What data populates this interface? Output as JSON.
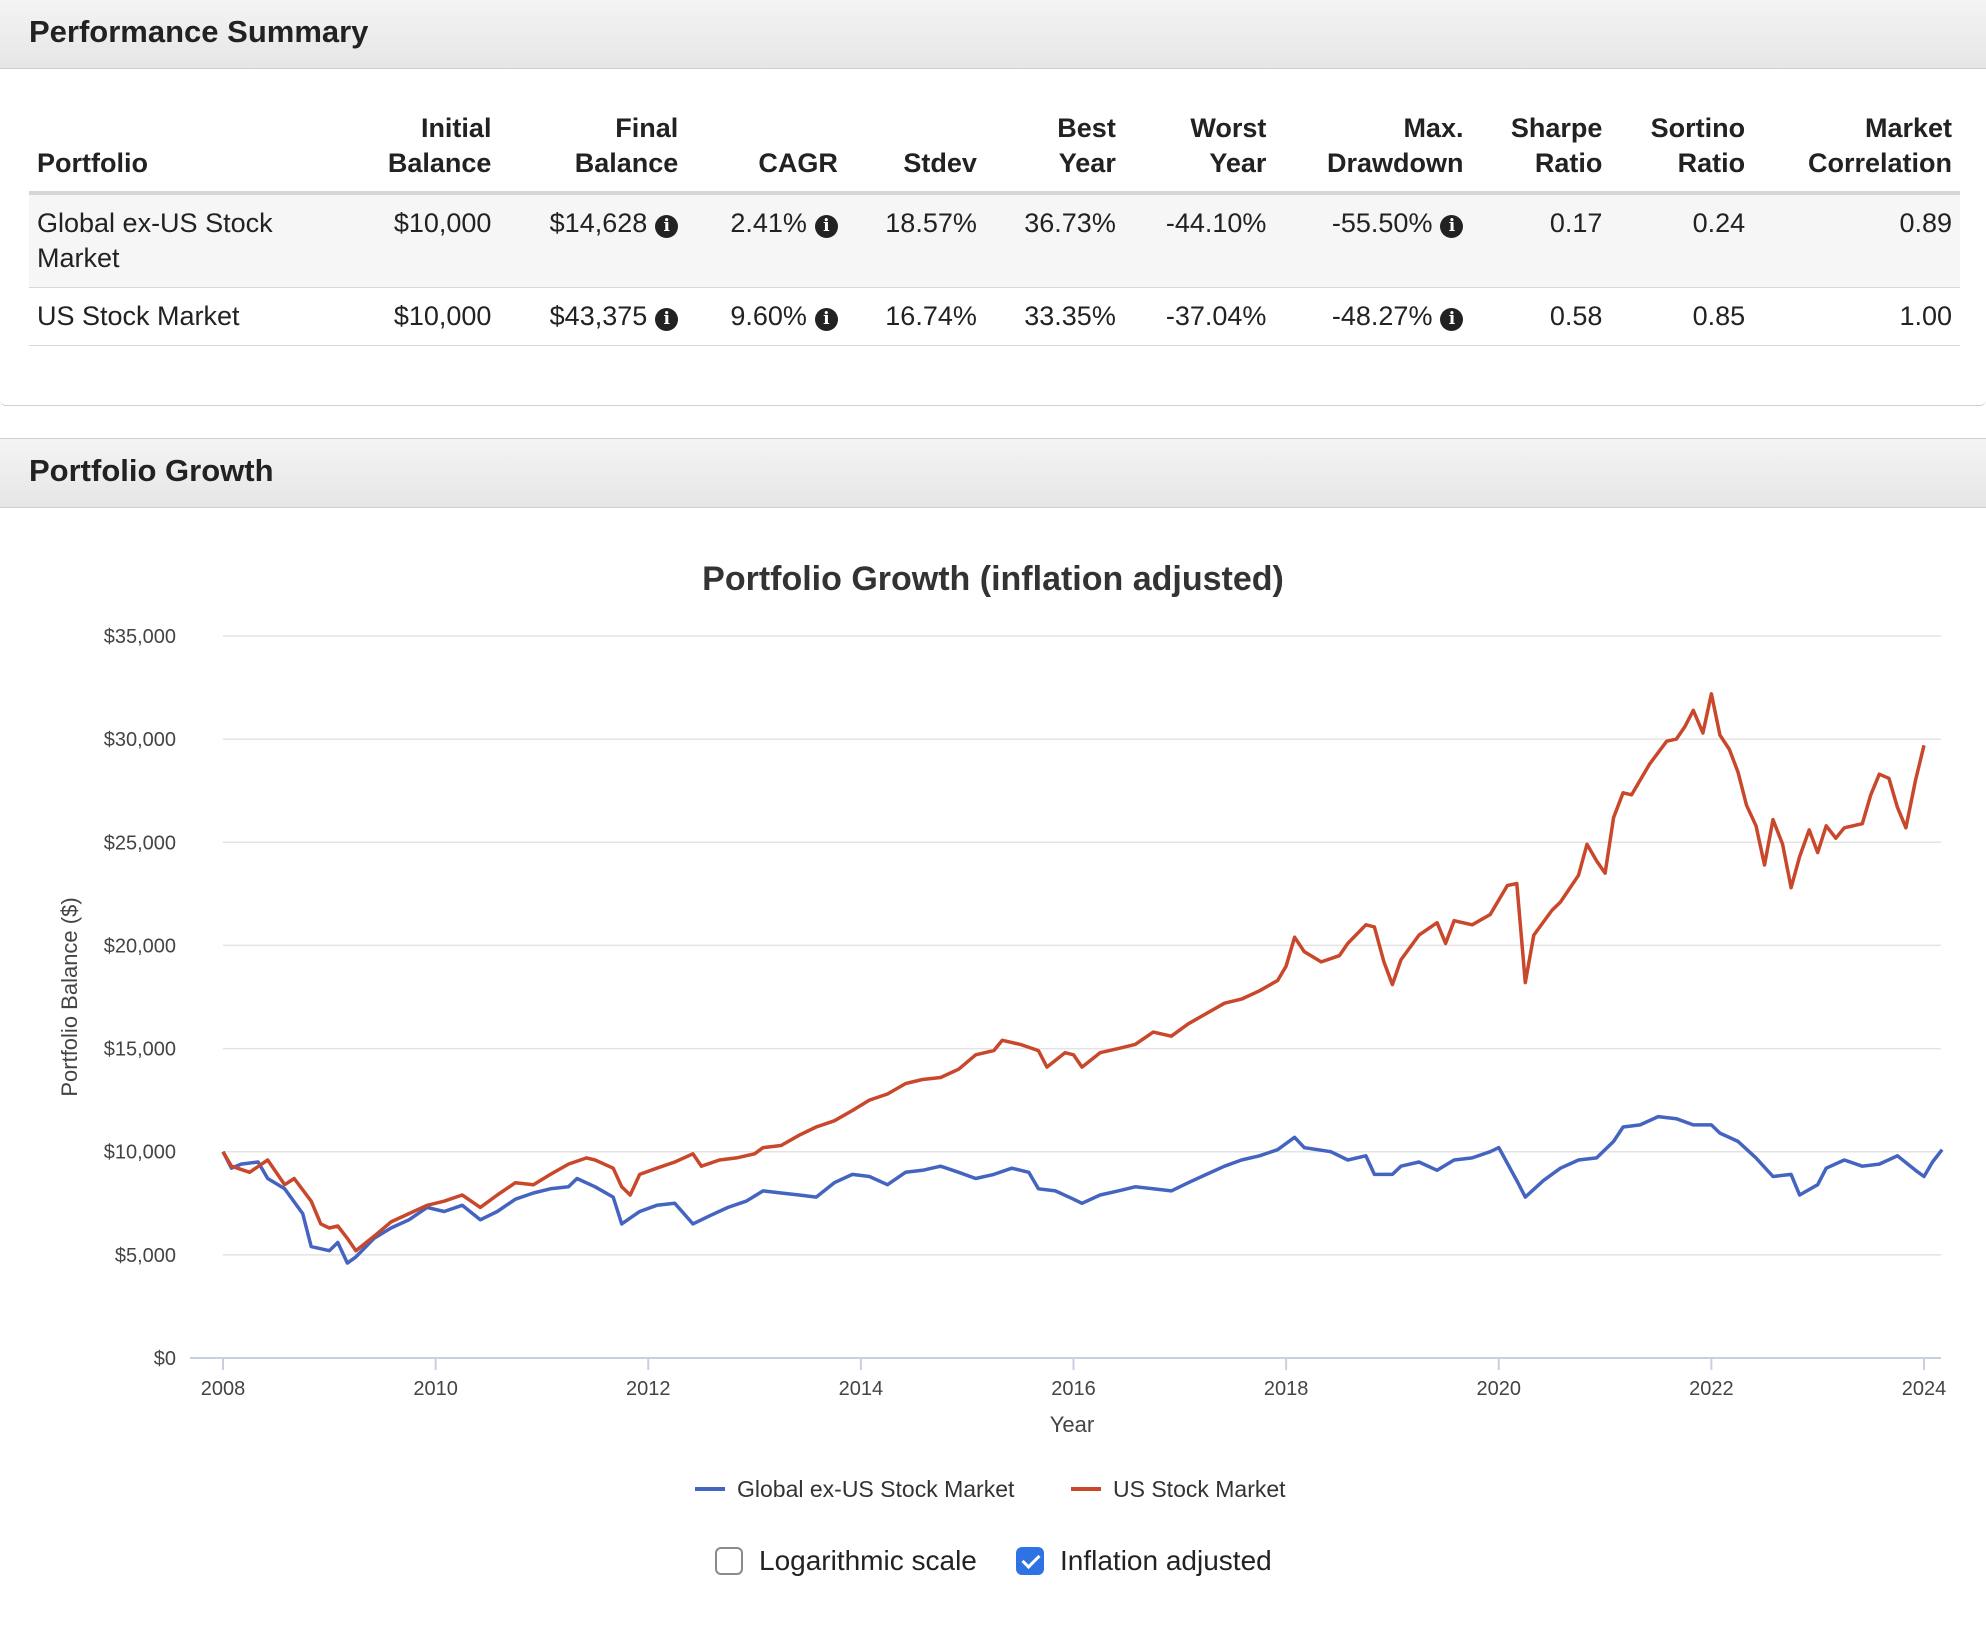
{
  "performance_summary": {
    "title": "Performance Summary",
    "columns": [
      {
        "line1": "",
        "line2": "Portfolio",
        "align": "left"
      },
      {
        "line1": "Initial",
        "line2": "Balance"
      },
      {
        "line1": "Final",
        "line2": "Balance"
      },
      {
        "line1": "",
        "line2": "CAGR"
      },
      {
        "line1": "",
        "line2": "Stdev"
      },
      {
        "line1": "Best",
        "line2": "Year"
      },
      {
        "line1": "Worst",
        "line2": "Year"
      },
      {
        "line1": "Max.",
        "line2": "Drawdown"
      },
      {
        "line1": "Sharpe",
        "line2": "Ratio"
      },
      {
        "line1": "Sortino",
        "line2": "Ratio"
      },
      {
        "line1": "Market",
        "line2": "Correlation"
      }
    ],
    "rows": [
      {
        "portfolio": "Global ex-US Stock Market",
        "initial_balance": "$10,000",
        "final_balance": "$14,628",
        "cagr": "2.41%",
        "stdev": "18.57%",
        "best_year": "36.73%",
        "worst_year": "-44.10%",
        "max_drawdown": "-55.50%",
        "sharpe_ratio": "0.17",
        "sortino_ratio": "0.24",
        "market_correlation": "0.89"
      },
      {
        "portfolio": "US Stock Market",
        "initial_balance": "$10,000",
        "final_balance": "$43,375",
        "cagr": "9.60%",
        "stdev": "16.74%",
        "best_year": "33.35%",
        "worst_year": "-37.04%",
        "max_drawdown": "-48.27%",
        "sharpe_ratio": "0.58",
        "sortino_ratio": "0.85",
        "market_correlation": "1.00"
      }
    ],
    "info_icon": "info-circle-icon"
  },
  "portfolio_growth": {
    "title": "Portfolio Growth",
    "controls": {
      "log_scale": {
        "label": "Logarithmic scale",
        "checked": false
      },
      "inflation_adjusted": {
        "label": "Inflation adjusted",
        "checked": true
      }
    }
  },
  "chart_data": {
    "type": "line",
    "title": "Portfolio Growth (inflation adjusted)",
    "xlabel": "Year",
    "ylabel": "Portfolio Balance ($)",
    "xlim": [
      2008,
      2024
    ],
    "ylim": [
      0,
      35000
    ],
    "x_ticks": [
      2008,
      2010,
      2012,
      2014,
      2016,
      2018,
      2020,
      2022,
      2024
    ],
    "y_ticks": [
      0,
      5000,
      10000,
      15000,
      20000,
      25000,
      30000,
      35000
    ],
    "y_tick_labels": [
      "$0",
      "$5,000",
      "$10,000",
      "$15,000",
      "$20,000",
      "$25,000",
      "$30,000",
      "$35,000"
    ],
    "grid": "horizontal",
    "legend": "bottom-center",
    "series": [
      {
        "name": "Global ex-US Stock Market",
        "color": "#4464c0",
        "points": [
          [
            2008.0,
            10000
          ],
          [
            2008.08,
            9200
          ],
          [
            2008.17,
            9400
          ],
          [
            2008.33,
            9500
          ],
          [
            2008.42,
            8700
          ],
          [
            2008.58,
            8200
          ],
          [
            2008.75,
            7000
          ],
          [
            2008.83,
            5400
          ],
          [
            2009.0,
            5200
          ],
          [
            2009.08,
            5600
          ],
          [
            2009.17,
            4600
          ],
          [
            2009.25,
            4900
          ],
          [
            2009.42,
            5800
          ],
          [
            2009.58,
            6300
          ],
          [
            2009.75,
            6700
          ],
          [
            2009.92,
            7300
          ],
          [
            2010.08,
            7100
          ],
          [
            2010.25,
            7400
          ],
          [
            2010.42,
            6700
          ],
          [
            2010.58,
            7100
          ],
          [
            2010.75,
            7700
          ],
          [
            2010.92,
            8000
          ],
          [
            2011.08,
            8200
          ],
          [
            2011.25,
            8300
          ],
          [
            2011.33,
            8700
          ],
          [
            2011.5,
            8300
          ],
          [
            2011.67,
            7800
          ],
          [
            2011.75,
            6500
          ],
          [
            2011.92,
            7100
          ],
          [
            2012.08,
            7400
          ],
          [
            2012.25,
            7500
          ],
          [
            2012.42,
            6500
          ],
          [
            2012.58,
            6900
          ],
          [
            2012.75,
            7300
          ],
          [
            2012.92,
            7600
          ],
          [
            2013.08,
            8100
          ],
          [
            2013.25,
            8000
          ],
          [
            2013.42,
            7900
          ],
          [
            2013.58,
            7800
          ],
          [
            2013.75,
            8500
          ],
          [
            2013.92,
            8900
          ],
          [
            2014.08,
            8800
          ],
          [
            2014.25,
            8400
          ],
          [
            2014.42,
            9000
          ],
          [
            2014.58,
            9100
          ],
          [
            2014.75,
            9300
          ],
          [
            2014.92,
            9000
          ],
          [
            2015.08,
            8700
          ],
          [
            2015.25,
            8900
          ],
          [
            2015.42,
            9200
          ],
          [
            2015.58,
            9000
          ],
          [
            2015.67,
            8200
          ],
          [
            2015.83,
            8100
          ],
          [
            2016.0,
            7700
          ],
          [
            2016.08,
            7500
          ],
          [
            2016.25,
            7900
          ],
          [
            2016.42,
            8100
          ],
          [
            2016.58,
            8300
          ],
          [
            2016.75,
            8200
          ],
          [
            2016.92,
            8100
          ],
          [
            2017.08,
            8500
          ],
          [
            2017.25,
            8900
          ],
          [
            2017.42,
            9300
          ],
          [
            2017.58,
            9600
          ],
          [
            2017.75,
            9800
          ],
          [
            2017.92,
            10100
          ],
          [
            2018.08,
            10700
          ],
          [
            2018.17,
            10200
          ],
          [
            2018.42,
            10000
          ],
          [
            2018.58,
            9600
          ],
          [
            2018.75,
            9800
          ],
          [
            2018.83,
            8900
          ],
          [
            2019.0,
            8900
          ],
          [
            2019.08,
            9300
          ],
          [
            2019.25,
            9500
          ],
          [
            2019.42,
            9100
          ],
          [
            2019.58,
            9600
          ],
          [
            2019.75,
            9700
          ],
          [
            2019.92,
            10000
          ],
          [
            2020.0,
            10200
          ],
          [
            2020.17,
            8600
          ],
          [
            2020.25,
            7800
          ],
          [
            2020.42,
            8600
          ],
          [
            2020.58,
            9200
          ],
          [
            2020.75,
            9600
          ],
          [
            2020.92,
            9700
          ],
          [
            2021.08,
            10500
          ],
          [
            2021.17,
            11200
          ],
          [
            2021.33,
            11300
          ],
          [
            2021.5,
            11700
          ],
          [
            2021.67,
            11600
          ],
          [
            2021.83,
            11300
          ],
          [
            2022.0,
            11300
          ],
          [
            2022.08,
            10900
          ],
          [
            2022.25,
            10500
          ],
          [
            2022.42,
            9700
          ],
          [
            2022.58,
            8800
          ],
          [
            2022.75,
            8900
          ],
          [
            2022.83,
            7900
          ],
          [
            2023.0,
            8400
          ],
          [
            2023.08,
            9200
          ],
          [
            2023.25,
            9600
          ],
          [
            2023.42,
            9300
          ],
          [
            2023.58,
            9400
          ],
          [
            2023.75,
            9800
          ],
          [
            2023.92,
            9100
          ],
          [
            2024.0,
            8800
          ],
          [
            2024.08,
            9500
          ],
          [
            2024.17,
            10100
          ]
        ]
      },
      {
        "name": "US Stock Market",
        "color": "#c9472a",
        "points": [
          [
            2008.0,
            10000
          ],
          [
            2008.08,
            9300
          ],
          [
            2008.25,
            9000
          ],
          [
            2008.42,
            9600
          ],
          [
            2008.58,
            8400
          ],
          [
            2008.67,
            8700
          ],
          [
            2008.83,
            7600
          ],
          [
            2008.92,
            6500
          ],
          [
            2009.0,
            6300
          ],
          [
            2009.08,
            6400
          ],
          [
            2009.17,
            5800
          ],
          [
            2009.25,
            5200
          ],
          [
            2009.42,
            5900
          ],
          [
            2009.58,
            6600
          ],
          [
            2009.75,
            7000
          ],
          [
            2009.92,
            7400
          ],
          [
            2010.08,
            7600
          ],
          [
            2010.25,
            7900
          ],
          [
            2010.42,
            7300
          ],
          [
            2010.58,
            7900
          ],
          [
            2010.75,
            8500
          ],
          [
            2010.92,
            8400
          ],
          [
            2011.08,
            8900
          ],
          [
            2011.25,
            9400
          ],
          [
            2011.42,
            9700
          ],
          [
            2011.5,
            9600
          ],
          [
            2011.67,
            9200
          ],
          [
            2011.75,
            8300
          ],
          [
            2011.83,
            7900
          ],
          [
            2011.92,
            8900
          ],
          [
            2012.08,
            9200
          ],
          [
            2012.25,
            9500
          ],
          [
            2012.42,
            9900
          ],
          [
            2012.5,
            9300
          ],
          [
            2012.67,
            9600
          ],
          [
            2012.83,
            9700
          ],
          [
            2013.0,
            9900
          ],
          [
            2013.08,
            10200
          ],
          [
            2013.25,
            10300
          ],
          [
            2013.42,
            10800
          ],
          [
            2013.58,
            11200
          ],
          [
            2013.75,
            11500
          ],
          [
            2013.92,
            12000
          ],
          [
            2014.08,
            12500
          ],
          [
            2014.25,
            12800
          ],
          [
            2014.42,
            13300
          ],
          [
            2014.58,
            13500
          ],
          [
            2014.75,
            13600
          ],
          [
            2014.92,
            14000
          ],
          [
            2015.08,
            14700
          ],
          [
            2015.25,
            14900
          ],
          [
            2015.33,
            15400
          ],
          [
            2015.5,
            15200
          ],
          [
            2015.67,
            14900
          ],
          [
            2015.75,
            14100
          ],
          [
            2015.92,
            14800
          ],
          [
            2016.0,
            14700
          ],
          [
            2016.08,
            14100
          ],
          [
            2016.25,
            14800
          ],
          [
            2016.42,
            15000
          ],
          [
            2016.58,
            15200
          ],
          [
            2016.75,
            15800
          ],
          [
            2016.92,
            15600
          ],
          [
            2017.08,
            16200
          ],
          [
            2017.25,
            16700
          ],
          [
            2017.42,
            17200
          ],
          [
            2017.58,
            17400
          ],
          [
            2017.75,
            17800
          ],
          [
            2017.92,
            18300
          ],
          [
            2018.0,
            19000
          ],
          [
            2018.08,
            20400
          ],
          [
            2018.17,
            19700
          ],
          [
            2018.33,
            19200
          ],
          [
            2018.5,
            19500
          ],
          [
            2018.58,
            20100
          ],
          [
            2018.75,
            21000
          ],
          [
            2018.83,
            20900
          ],
          [
            2018.92,
            19200
          ],
          [
            2019.0,
            18100
          ],
          [
            2019.08,
            19300
          ],
          [
            2019.25,
            20500
          ],
          [
            2019.42,
            21100
          ],
          [
            2019.5,
            20100
          ],
          [
            2019.58,
            21200
          ],
          [
            2019.75,
            21000
          ],
          [
            2019.92,
            21500
          ],
          [
            2020.08,
            22900
          ],
          [
            2020.17,
            23000
          ],
          [
            2020.25,
            18200
          ],
          [
            2020.33,
            20500
          ],
          [
            2020.5,
            21700
          ],
          [
            2020.58,
            22100
          ],
          [
            2020.75,
            23400
          ],
          [
            2020.83,
            24900
          ],
          [
            2020.92,
            24100
          ],
          [
            2021.0,
            23500
          ],
          [
            2021.08,
            26200
          ],
          [
            2021.17,
            27400
          ],
          [
            2021.25,
            27300
          ],
          [
            2021.42,
            28800
          ],
          [
            2021.58,
            29900
          ],
          [
            2021.67,
            30000
          ],
          [
            2021.75,
            30600
          ],
          [
            2021.83,
            31400
          ],
          [
            2021.92,
            30300
          ],
          [
            2022.0,
            32200
          ],
          [
            2022.08,
            30200
          ],
          [
            2022.17,
            29500
          ],
          [
            2022.25,
            28400
          ],
          [
            2022.33,
            26800
          ],
          [
            2022.42,
            25800
          ],
          [
            2022.5,
            23900
          ],
          [
            2022.58,
            26100
          ],
          [
            2022.67,
            24900
          ],
          [
            2022.75,
            22800
          ],
          [
            2022.83,
            24300
          ],
          [
            2022.92,
            25600
          ],
          [
            2023.0,
            24500
          ],
          [
            2023.08,
            25800
          ],
          [
            2023.17,
            25200
          ],
          [
            2023.25,
            25700
          ],
          [
            2023.42,
            25900
          ],
          [
            2023.5,
            27300
          ],
          [
            2023.58,
            28300
          ],
          [
            2023.67,
            28100
          ],
          [
            2023.75,
            26700
          ],
          [
            2023.83,
            25700
          ],
          [
            2023.92,
            28000
          ],
          [
            2024.0,
            29700
          ]
        ]
      }
    ]
  }
}
